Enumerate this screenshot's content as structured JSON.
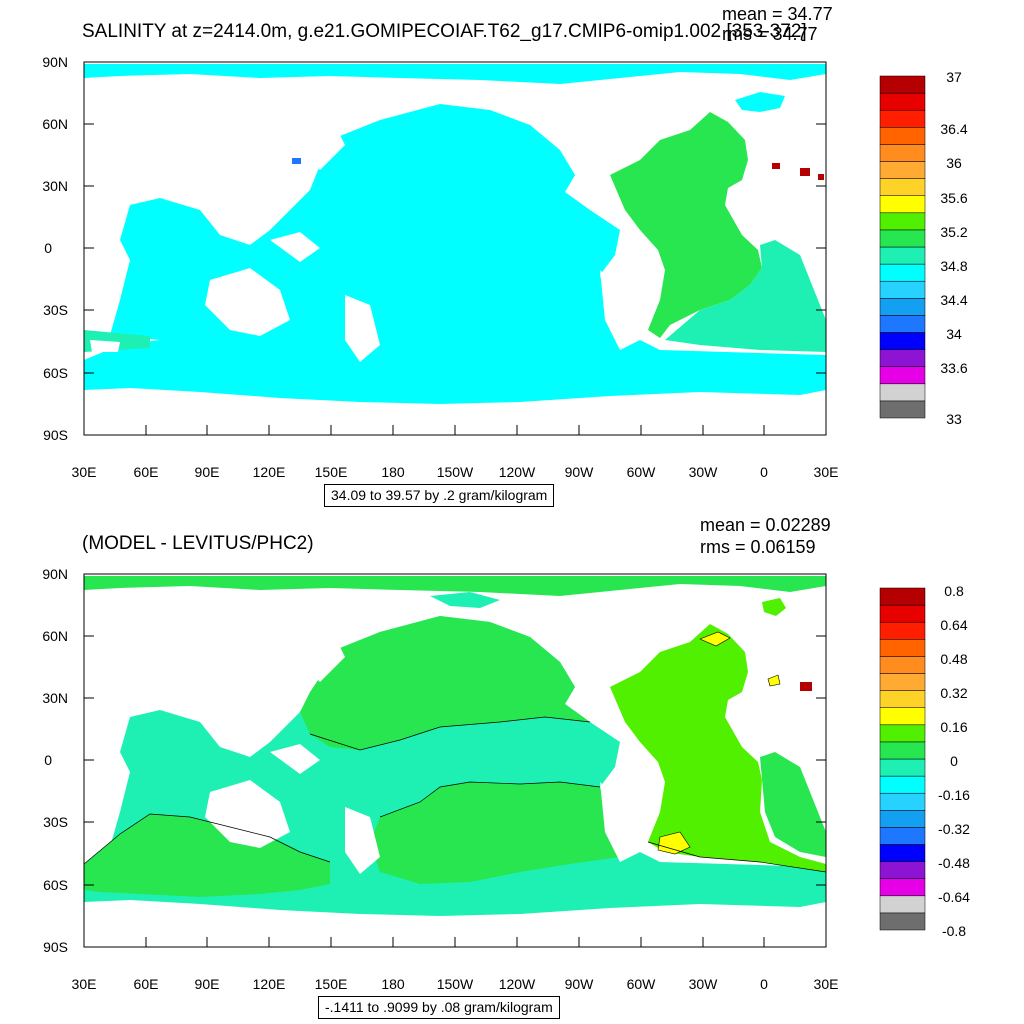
{
  "panels": [
    {
      "title": "SALINITY at z=2414.0m, g.e21.GOMIPECOIAF.T62_g17.CMIP6-omip1.002 [353-372]",
      "mean_text": "mean = 34.77",
      "rms_text": "rms = 34.77",
      "range_text": "34.09 to 39.57 by .2 gram/kilogram",
      "lat_labels": [
        "90N",
        "60N",
        "30N",
        "0",
        "30S",
        "60S",
        "90S"
      ],
      "lon_labels": [
        "30E",
        "60E",
        "90E",
        "120E",
        "150E",
        "180",
        "150W",
        "120W",
        "90W",
        "60W",
        "30W",
        "0",
        "30E"
      ],
      "colorbar_colors": [
        "#6e6e6e",
        "#d2d2d2",
        "#e600e6",
        "#8c14d2",
        "#0000ff",
        "#1e78ff",
        "#14a0f0",
        "#28d2ff",
        "#00ffff",
        "#1ef0b4",
        "#28e650",
        "#50f000",
        "#ffff00",
        "#ffd228",
        "#ffaa32",
        "#ff8c1e",
        "#ff6400",
        "#ff1e00",
        "#e60000",
        "#b40000"
      ],
      "colorbar_labels": [
        "33",
        "33.6",
        "34",
        "34.4",
        "34.8",
        "35.2",
        "35.6",
        "36",
        "36.4",
        "37"
      ]
    },
    {
      "title": "(MODEL - LEVITUS/PHC2)",
      "mean_text": "mean = 0.02289",
      "rms_text": "rms = 0.06159",
      "range_text": "-.1411 to .9099 by .08 gram/kilogram",
      "lat_labels": [
        "90N",
        "60N",
        "30N",
        "0",
        "30S",
        "60S",
        "90S"
      ],
      "lon_labels": [
        "30E",
        "60E",
        "90E",
        "120E",
        "150E",
        "180",
        "150W",
        "120W",
        "90W",
        "60W",
        "30W",
        "0",
        "30E"
      ],
      "colorbar_colors": [
        "#6e6e6e",
        "#d2d2d2",
        "#e600e6",
        "#8c14d2",
        "#0000ff",
        "#1e78ff",
        "#14a0f0",
        "#28d2ff",
        "#00ffff",
        "#1ef0b4",
        "#28e650",
        "#50f000",
        "#ffff00",
        "#ffd228",
        "#ffaa32",
        "#ff8c1e",
        "#ff6400",
        "#ff1e00",
        "#e60000",
        "#b40000"
      ],
      "colorbar_labels": [
        "-0.8",
        "-0.64",
        "-0.48",
        "-0.32",
        "-0.16",
        "0",
        "0.16",
        "0.32",
        "0.48",
        "0.64",
        "0.8"
      ]
    }
  ],
  "colors": {
    "ocean_top": "#00ffff",
    "atlantic_top": "#28e650",
    "south_atlantic_top": "#1ef0b4",
    "diff_green": "#28e650",
    "diff_cyan": "#1ef0b4",
    "diff_lime": "#50f000",
    "yellow": "#ffff00",
    "dark_red": "#b40000",
    "blue": "#1e78ff"
  }
}
